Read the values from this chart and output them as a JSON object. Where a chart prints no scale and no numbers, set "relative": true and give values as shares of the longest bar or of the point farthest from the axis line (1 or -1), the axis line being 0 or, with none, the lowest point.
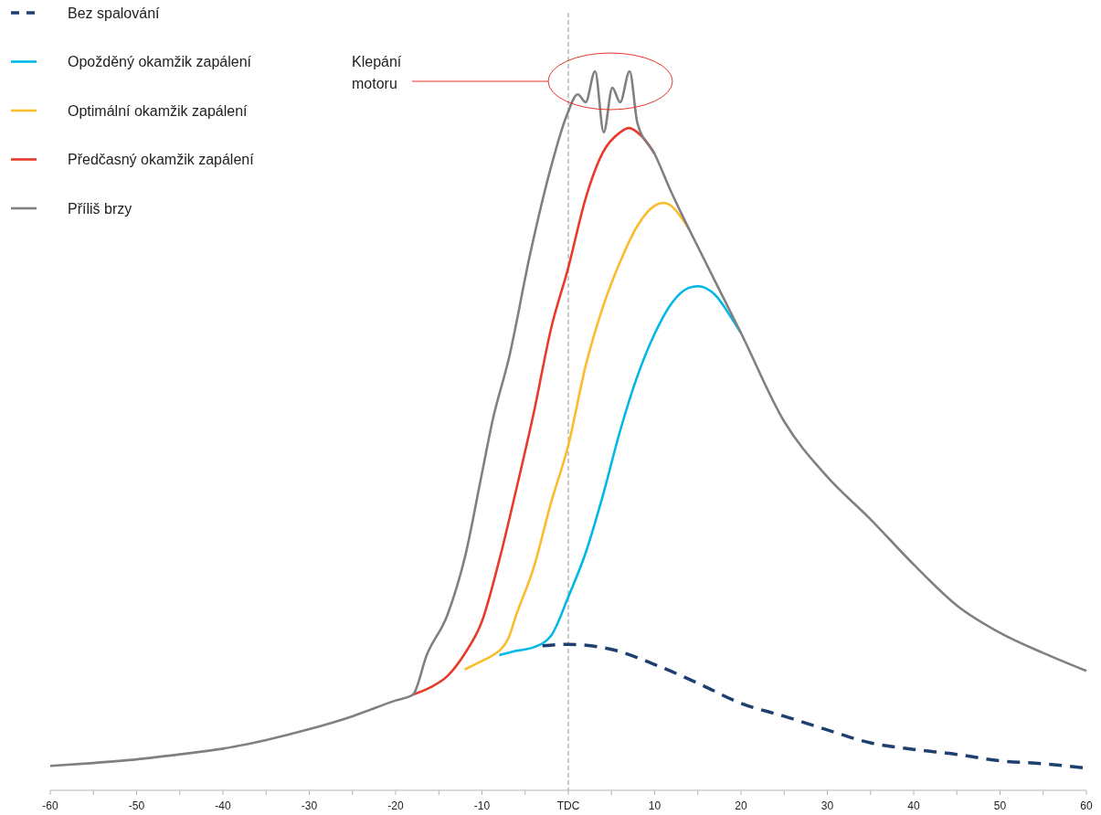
{
  "chart_data": {
    "type": "line",
    "relative": true,
    "xlim": [
      -60,
      60
    ],
    "xticks": [
      -60,
      {
        "value": -55,
        "label": null
      },
      -50,
      {
        "value": -45,
        "label": null
      },
      -40,
      {
        "value": -35,
        "label": null
      },
      -30,
      {
        "value": -25,
        "label": null
      },
      -20,
      {
        "value": -15,
        "label": null
      },
      -10,
      {
        "value": -5,
        "label": null
      },
      {
        "value": 0,
        "label": "TDC"
      },
      {
        "value": 5,
        "label": null
      },
      10,
      {
        "value": 15,
        "label": null
      },
      20,
      {
        "value": 25,
        "label": null
      },
      30,
      {
        "value": 35,
        "label": null
      },
      40,
      {
        "value": 45,
        "label": null
      },
      50,
      {
        "value": 55,
        "label": null
      },
      60
    ],
    "tick_labels": "x",
    "grid": false,
    "legend": "top left",
    "marker": "none",
    "ref_lines": [
      {
        "axis": "x",
        "value": 0,
        "label": null,
        "color": "#a6a6a6",
        "line_style": "dashed"
      }
    ],
    "annotations": [
      "Klepání motoru"
    ],
    "series": [
      {
        "name": "Bez spalování",
        "color": "#1f3f6e",
        "line_style": "dashed",
        "x": [
          -3,
          0,
          5,
          10,
          15,
          20,
          25,
          30,
          35,
          40,
          45,
          50,
          55,
          60
        ],
        "values": [
          0.201,
          0.203,
          0.196,
          0.175,
          0.149,
          0.121,
          0.103,
          0.084,
          0.066,
          0.057,
          0.05,
          0.041,
          0.037,
          0.031
        ]
      },
      {
        "name": "Opožděný okamžik zapálení",
        "color": "#00b8e6",
        "line_style": "solid",
        "x": [
          -8,
          -6,
          -4,
          -2,
          0,
          2,
          4,
          6,
          8,
          10,
          12,
          14,
          15,
          17,
          19,
          20
        ],
        "values": [
          0.188,
          0.194,
          0.199,
          0.215,
          0.269,
          0.33,
          0.41,
          0.5,
          0.576,
          0.635,
          0.678,
          0.699,
          0.701,
          0.689,
          0.655,
          0.636
        ]
      },
      {
        "name": "Optimální okamžik zapálení",
        "color": "#fbbc2c",
        "line_style": "solid",
        "x": [
          -12,
          -10,
          -9,
          -7,
          -6,
          -4,
          -2,
          0,
          2,
          4,
          6,
          8,
          10,
          11,
          12,
          13,
          14
        ],
        "values": [
          0.168,
          0.18,
          0.186,
          0.21,
          0.245,
          0.31,
          0.4,
          0.48,
          0.59,
          0.672,
          0.735,
          0.785,
          0.813,
          0.817,
          0.812,
          0.798,
          0.78
        ]
      },
      {
        "name": "Předčasný okamžik zapálení",
        "color": "#e83a2a",
        "line_style": "solid",
        "x": [
          -18,
          -16,
          -14,
          -12,
          -10,
          -8,
          -6,
          -4,
          -2,
          0,
          2,
          4,
          6,
          7,
          8,
          9,
          10
        ],
        "values": [
          0.133,
          0.143,
          0.159,
          0.19,
          0.235,
          0.32,
          0.42,
          0.525,
          0.642,
          0.727,
          0.823,
          0.887,
          0.915,
          0.921,
          0.915,
          0.903,
          0.885
        ]
      },
      {
        "name": "Příliš brzy",
        "color": "#808080",
        "line_style": "solid",
        "x": [
          -60,
          -55,
          -50,
          -45,
          -40,
          -35,
          -30,
          -25,
          -20,
          -18,
          -16.4,
          -14,
          -11.9,
          -10.1,
          -8.7,
          -6.9,
          -4.4,
          -2,
          -0.2,
          1.1,
          2,
          3.1,
          4.1,
          5.1,
          6,
          7.1,
          8,
          10,
          12,
          14,
          15,
          17,
          20,
          25,
          30,
          35,
          40,
          45,
          50,
          55,
          60
        ],
        "values": [
          0.034,
          0.038,
          0.043,
          0.05,
          0.058,
          0.07,
          0.085,
          0.103,
          0.125,
          0.133,
          0.188,
          0.244,
          0.328,
          0.435,
          0.518,
          0.6,
          0.747,
          0.867,
          0.938,
          0.968,
          0.957,
          1,
          0.915,
          0.977,
          0.957,
          1,
          0.928,
          0.885,
          0.83,
          0.78,
          0.756,
          0.708,
          0.636,
          0.513,
          0.436,
          0.377,
          0.314,
          0.257,
          0.219,
          0.191,
          0.166
        ]
      }
    ]
  }
}
